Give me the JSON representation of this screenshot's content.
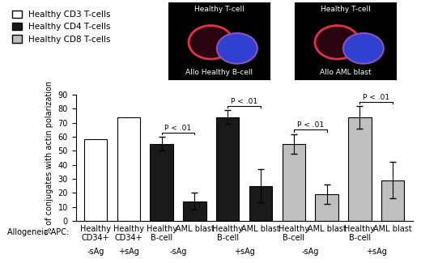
{
  "chart_data": {
    "type": "bar",
    "ylabel": "% of conjugates with actin polarization",
    "x_title": "Allogeneic APC:",
    "categories": [
      "Healthy CD34+",
      "Healthy CD34+",
      "Healthy B-cell",
      "AML blast",
      "Healthy B-cell",
      "AML blast",
      "Healthy B-cell",
      "AML blast",
      "Healthy B-cell",
      "AML blast"
    ],
    "series": [
      {
        "name": "Healthy CD3 T-cells",
        "color": "#ffffff",
        "values": [
          58,
          74,
          null,
          null,
          null,
          null,
          null,
          null,
          null,
          null
        ],
        "errors": [
          null,
          null,
          null,
          null,
          null,
          null,
          null,
          null,
          null,
          null
        ]
      },
      {
        "name": "Healthy CD4 T-cells",
        "color": "#1a1a1a",
        "values": [
          null,
          null,
          55,
          14,
          74,
          25,
          null,
          null,
          null,
          null
        ],
        "errors": [
          null,
          null,
          5,
          6,
          5,
          12,
          null,
          null,
          null,
          null
        ]
      },
      {
        "name": "Healthy CD8 T-cells",
        "color": "#bfbfbf",
        "values": [
          null,
          null,
          null,
          null,
          null,
          null,
          55,
          19,
          74,
          29
        ],
        "errors": [
          null,
          null,
          null,
          null,
          null,
          null,
          7,
          7,
          8,
          13
        ]
      }
    ],
    "groups": [
      {
        "label": "-sAg",
        "members": [
          0
        ]
      },
      {
        "label": "+sAg",
        "members": [
          1
        ]
      },
      {
        "label": "-sAg",
        "members": [
          2,
          3
        ]
      },
      {
        "label": "+sAg",
        "members": [
          4,
          5
        ]
      },
      {
        "label": "-sAg",
        "members": [
          6,
          7
        ]
      },
      {
        "label": "+sAg",
        "members": [
          8,
          9
        ]
      }
    ],
    "comparisons": [
      {
        "label": "P < .01",
        "members": [
          2,
          3
        ]
      },
      {
        "label": "P < .01",
        "members": [
          4,
          5
        ]
      },
      {
        "label": "P < .01",
        "members": [
          6,
          7
        ]
      },
      {
        "label": "P < .01",
        "members": [
          8,
          9
        ]
      }
    ],
    "ylim": [
      0,
      90
    ],
    "yticks": [
      0,
      10,
      20,
      30,
      40,
      50,
      60,
      70,
      80,
      90
    ],
    "legend": "upper left",
    "panels": [
      {
        "top": "Healthy T-cell",
        "bottom": "Allo Healthy B-cell"
      },
      {
        "top": "Healthy T-cell",
        "bottom": "Allo AML blast"
      }
    ]
  }
}
